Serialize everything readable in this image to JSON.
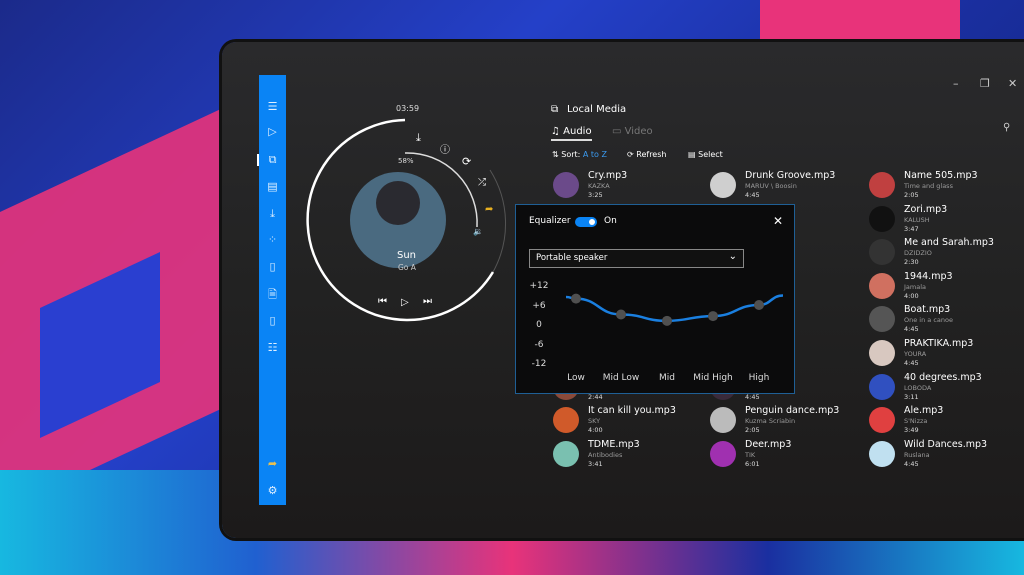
{
  "player": {
    "time": "03:59",
    "volume": "58%",
    "track": "Sun",
    "artist": "Go A",
    "progress": 0.62,
    "volume_level": 0.58
  },
  "header": {
    "title": "Local Media",
    "tabs": [
      {
        "label": "Audio",
        "active": true
      },
      {
        "label": "Video",
        "active": false
      }
    ],
    "sort_label": "Sort:",
    "sort_value": "A to Z",
    "refresh": "Refresh",
    "select": "Select"
  },
  "colors": {
    "accent": "#0a84f5",
    "sort_value": "#3a9af0",
    "share": "#e8b020"
  },
  "columns": [
    [
      {
        "title": "Cry.mp3",
        "artist": "KAZKA",
        "duration": "3:25",
        "color": "#6b4a8a"
      },
      {
        "title": "",
        "artist": "",
        "duration": "2:44",
        "color": "#8a4a3a"
      },
      {
        "title": "It can kill you.mp3",
        "artist": "SKY",
        "duration": "4:00",
        "color": "#d05a2a"
      },
      {
        "title": "TDME.mp3",
        "artist": "Antibodies",
        "duration": "3:41",
        "color": "#7ac0b0"
      }
    ],
    [
      {
        "title": "Drunk Groove.mp3",
        "artist": "MARUV \\ Boosin",
        "duration": "4:45",
        "color": "#cfcfcf"
      },
      {
        "title": "",
        "artist": "",
        "duration": "4:45",
        "color": "#3a2a3a"
      },
      {
        "title": "Penguin dance.mp3",
        "artist": "Kuzma Scriabin",
        "duration": "2:05",
        "color": "#bbbbbb"
      },
      {
        "title": "Deer.mp3",
        "artist": "TIK",
        "duration": "6:01",
        "color": "#a030b0"
      }
    ],
    [
      {
        "title": "Name 505.mp3",
        "artist": "Time and glass",
        "duration": "2:05",
        "color": "#c04040"
      },
      {
        "title": "Zori.mp3",
        "artist": "KALUSH",
        "duration": "3:47",
        "color": "#111"
      },
      {
        "title": "Me and Sarah.mp3",
        "artist": "DZIDZIO",
        "duration": "2:30",
        "color": "#333"
      },
      {
        "title": "1944.mp3",
        "artist": "Jamala",
        "duration": "4:00",
        "color": "#d07060"
      },
      {
        "title": "Boat.mp3",
        "artist": "One in a canoe",
        "duration": "4:45",
        "color": "#555"
      },
      {
        "title": "PRAKTIKA.mp3",
        "artist": "YOURA",
        "duration": "4:45",
        "color": "#d8c8c0"
      },
      {
        "title": "40 degrees.mp3",
        "artist": "LOBODA",
        "duration": "3:11",
        "color": "#3050c0"
      },
      {
        "title": "Ale.mp3",
        "artist": "S'Nizza",
        "duration": "3:49",
        "color": "#e04040"
      },
      {
        "title": "Wild Dances.mp3",
        "artist": "Ruslana",
        "duration": "4:45",
        "color": "#c0e0f0"
      }
    ]
  ],
  "equalizer": {
    "title": "Equalizer",
    "toggle_label": "On",
    "enabled": true,
    "preset": "Portable speaker"
  },
  "chart_data": {
    "type": "line",
    "categories": [
      "Low",
      "Mid Low",
      "Mid",
      "Mid High",
      "High"
    ],
    "values": [
      8,
      3,
      1,
      2.5,
      6
    ],
    "yticks": [
      "+12",
      "+6",
      "0",
      "-6",
      "-12"
    ],
    "ylim": [
      -12,
      12
    ]
  }
}
